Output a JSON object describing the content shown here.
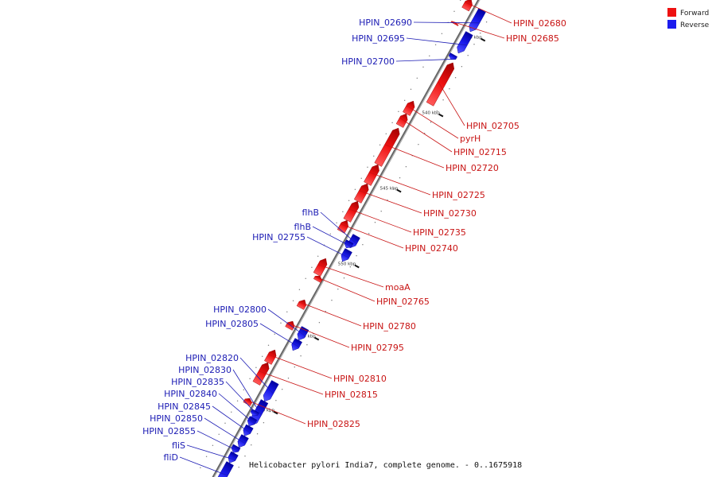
{
  "colors": {
    "forward": "#ee1111",
    "reverse": "#1c1cee",
    "axis": "#777777",
    "label_forward": "#c81414",
    "label_reverse": "#1c1cb4"
  },
  "legend": [
    {
      "name": "Forward",
      "color": "#ee1111"
    },
    {
      "name": "Reverse",
      "color": "#1c1cee"
    }
  ],
  "caption": "Helicobacter pylori India7, complete genome. - 0..1675918",
  "ticks": [
    {
      "label": "535 kbp"
    },
    {
      "label": "540 kbp"
    },
    {
      "label": "545 kbp"
    },
    {
      "label": "550 kbp"
    },
    {
      "label": "555 kbp"
    },
    {
      "label": "560 kbp"
    }
  ],
  "genes": [
    {
      "name": "HPIN_02680",
      "strand": "forward"
    },
    {
      "name": "HPIN_02685",
      "strand": "forward"
    },
    {
      "name": "HPIN_02690",
      "strand": "reverse"
    },
    {
      "name": "HPIN_02695",
      "strand": "reverse"
    },
    {
      "name": "HPIN_02700",
      "strand": "reverse"
    },
    {
      "name": "HPIN_02705",
      "strand": "forward"
    },
    {
      "name": "pyrH",
      "strand": "forward"
    },
    {
      "name": "HPIN_02715",
      "strand": "forward"
    },
    {
      "name": "HPIN_02720",
      "strand": "forward"
    },
    {
      "name": "HPIN_02725",
      "strand": "forward"
    },
    {
      "name": "HPIN_02730",
      "strand": "forward"
    },
    {
      "name": "HPIN_02735",
      "strand": "forward"
    },
    {
      "name": "HPIN_02740",
      "strand": "forward"
    },
    {
      "name": "flhB",
      "strand": "reverse"
    },
    {
      "name": "flhB",
      "strand": "reverse"
    },
    {
      "name": "HPIN_02755",
      "strand": "reverse"
    },
    {
      "name": "moaA",
      "strand": "forward"
    },
    {
      "name": "HPIN_02765",
      "strand": "forward"
    },
    {
      "name": "HPIN_02780",
      "strand": "forward"
    },
    {
      "name": "HPIN_02795",
      "strand": "forward"
    },
    {
      "name": "HPIN_02800",
      "strand": "reverse"
    },
    {
      "name": "HPIN_02805",
      "strand": "reverse"
    },
    {
      "name": "HPIN_02810",
      "strand": "forward"
    },
    {
      "name": "HPIN_02815",
      "strand": "forward"
    },
    {
      "name": "HPIN_02825",
      "strand": "forward"
    },
    {
      "name": "HPIN_02820",
      "strand": "reverse"
    },
    {
      "name": "HPIN_02830",
      "strand": "reverse"
    },
    {
      "name": "HPIN_02835",
      "strand": "reverse"
    },
    {
      "name": "HPIN_02840",
      "strand": "reverse"
    },
    {
      "name": "HPIN_02845",
      "strand": "reverse"
    },
    {
      "name": "HPIN_02850",
      "strand": "reverse"
    },
    {
      "name": "HPIN_02855",
      "strand": "reverse"
    },
    {
      "name": "fliS",
      "strand": "reverse"
    },
    {
      "name": "fliD",
      "strand": "reverse"
    }
  ]
}
